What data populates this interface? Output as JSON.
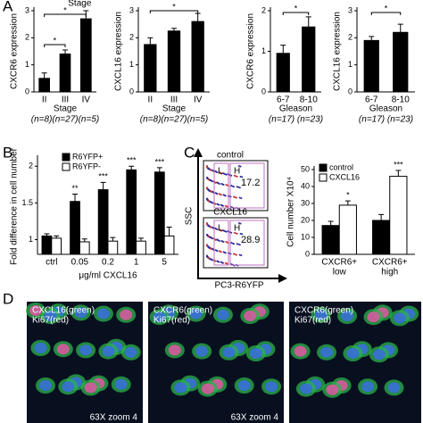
{
  "panel_labels": [
    "A",
    "B",
    "C",
    "D"
  ],
  "chart_data": [
    {
      "type": "bar",
      "ylabel": "CXCR6 expression",
      "xlabel": "Stage",
      "bracket_label": "Stage",
      "sample_sizes": "(n=8)(n=27)(n=5)",
      "categories": [
        "II",
        "III",
        "IV"
      ],
      "series": [
        {
          "color": "#000000",
          "values": [
            0.5,
            1.4,
            2.7
          ],
          "errors": [
            0.2,
            0.15,
            0.3
          ]
        }
      ],
      "ylim": [
        0,
        3
      ],
      "yticks": [
        0,
        1,
        2,
        3
      ],
      "brackets": [
        "*",
        "*"
      ]
    },
    {
      "type": "bar",
      "ylabel": "CXCL16 expression",
      "xlabel": "Stage",
      "sample_sizes": "(n=8)(n=27)(n=5)",
      "categories": [
        "II",
        "III",
        "IV"
      ],
      "series": [
        {
          "color": "#000000",
          "values": [
            1.75,
            2.25,
            2.6
          ],
          "errors": [
            0.25,
            0.1,
            0.3
          ]
        }
      ],
      "ylim": [
        0,
        3
      ],
      "yticks": [
        0,
        1,
        2,
        3
      ],
      "brackets": [
        "*"
      ]
    },
    {
      "type": "bar",
      "ylabel": "CXCR6 expression",
      "xlabel": "Gleason",
      "sample_sizes": "(n=17) (n=23)",
      "categories": [
        "6-7",
        "8-10"
      ],
      "series": [
        {
          "color": "#000000",
          "values": [
            0.95,
            1.6
          ],
          "errors": [
            0.2,
            0.25
          ]
        }
      ],
      "ylim": [
        0,
        2
      ],
      "yticks": [
        0,
        1,
        2
      ],
      "brackets": [
        "*"
      ]
    },
    {
      "type": "bar",
      "ylabel": "CXCL16 expression",
      "xlabel": "Gleason",
      "sample_sizes": "(n=17) (n=23)",
      "categories": [
        "6-7",
        "8-10"
      ],
      "series": [
        {
          "color": "#000000",
          "values": [
            1.9,
            2.2
          ],
          "errors": [
            0.15,
            0.3
          ]
        }
      ],
      "ylim": [
        0,
        3
      ],
      "yticks": [
        0,
        1,
        2,
        3
      ],
      "brackets": [
        "*"
      ]
    },
    {
      "type": "bar",
      "ylabel": "Fold difference in cell number",
      "xlabel": "μg/ml CXCL16",
      "categories": [
        "ctrl",
        "0.05",
        "0.2",
        "1",
        "5"
      ],
      "series": [
        {
          "name": "R6YFP+",
          "color": "#000000",
          "values": [
            1.05,
            1.52,
            1.68,
            1.95,
            1.92
          ],
          "errors": [
            0.03,
            0.1,
            0.1,
            0.05,
            0.06
          ],
          "significance": [
            null,
            "**",
            "***",
            "***",
            "***"
          ]
        },
        {
          "name": "R6YFP-",
          "color": "#ffffff",
          "values": [
            1.02,
            0.97,
            0.98,
            0.98,
            1.05
          ],
          "errors": [
            0.03,
            0.04,
            0.05,
            0.04,
            0.12
          ]
        }
      ],
      "ylim": [
        0.8,
        2.1
      ],
      "yticks": [
        1,
        1.5,
        2
      ],
      "legend": "top-left"
    },
    {
      "type": "bar",
      "ylabel": "Cell number X10⁴",
      "categories": [
        [
          "CXCR6+",
          "low"
        ],
        [
          "CXCR6+",
          "high"
        ]
      ],
      "series": [
        {
          "name": "control",
          "color": "#000000",
          "values": [
            17,
            20
          ],
          "errors": [
            2.5,
            3.5
          ]
        },
        {
          "name": "CXCL16",
          "color": "#ffffff",
          "values": [
            29,
            46
          ],
          "errors": [
            2.5,
            3.5
          ],
          "significance": [
            "*",
            "***"
          ]
        }
      ],
      "ylim": [
        0,
        50
      ],
      "yticks": [
        0,
        10,
        20,
        30,
        40,
        50
      ],
      "legend": "top-left"
    }
  ],
  "flow": {
    "plots": [
      {
        "title": "control",
        "gates": [
          "L",
          "H"
        ],
        "value": "17.2"
      },
      {
        "title": "CXCL16",
        "gates": [
          "L",
          "H"
        ],
        "value": "28.9"
      }
    ],
    "ylabel": "SSC",
    "xlabel": "PC3-R6YFP"
  },
  "micrographs": [
    {
      "lines": [
        "CXCL16(green)",
        "Ki67(red)"
      ],
      "zoom": "63X zoom 4"
    },
    {
      "lines": [
        "CXCR6(green)",
        "Ki67(red)"
      ],
      "zoom": "63X zoom 4"
    },
    {
      "lines": [
        "CXCR6(green)",
        "Ki67(red)"
      ]
    }
  ]
}
